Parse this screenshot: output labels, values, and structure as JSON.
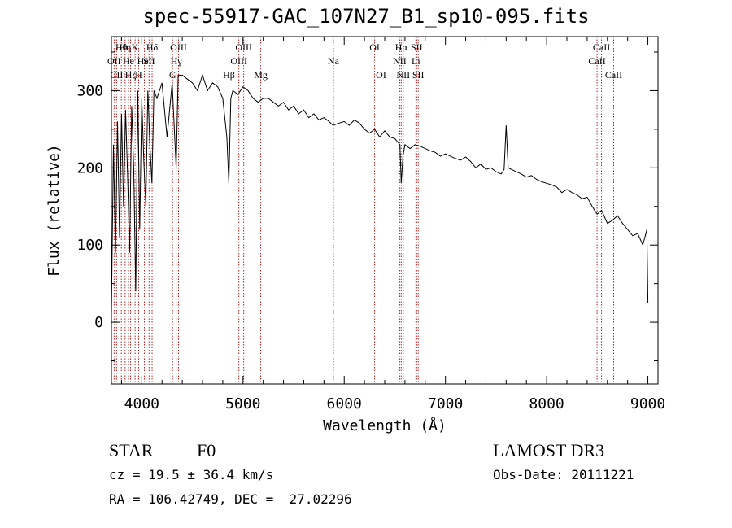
{
  "chart_data": {
    "type": "line",
    "title": "spec-55917-GAC_107N27_B1_sp10-095.fits",
    "xlabel": "Wavelength (Å)",
    "ylabel": "Flux (relative)",
    "xlim": [
      3700,
      9100
    ],
    "ylim": [
      -80,
      370
    ],
    "xticks": [
      4000,
      5000,
      6000,
      7000,
      8000,
      9000
    ],
    "yticks": [
      0,
      100,
      200,
      300
    ],
    "series": [
      {
        "name": "spectrum",
        "x": [
          3700,
          3720,
          3740,
          3760,
          3780,
          3800,
          3820,
          3840,
          3860,
          3880,
          3900,
          3920,
          3940,
          3960,
          3980,
          4000,
          4020,
          4040,
          4060,
          4080,
          4100,
          4120,
          4150,
          4200,
          4250,
          4300,
          4340,
          4360,
          4400,
          4450,
          4500,
          4550,
          4600,
          4650,
          4700,
          4750,
          4800,
          4840,
          4860,
          4880,
          4900,
          4950,
          5000,
          5050,
          5100,
          5150,
          5200,
          5250,
          5300,
          5350,
          5400,
          5450,
          5500,
          5550,
          5600,
          5650,
          5700,
          5750,
          5800,
          5850,
          5890,
          5950,
          6000,
          6050,
          6100,
          6150,
          6200,
          6250,
          6300,
          6350,
          6400,
          6450,
          6500,
          6550,
          6563,
          6580,
          6600,
          6650,
          6700,
          6750,
          6800,
          6850,
          6900,
          6950,
          7000,
          7050,
          7100,
          7150,
          7200,
          7250,
          7300,
          7350,
          7400,
          7450,
          7500,
          7550,
          7580,
          7600,
          7620,
          7650,
          7700,
          7750,
          7800,
          7850,
          7900,
          7950,
          8000,
          8050,
          8100,
          8150,
          8200,
          8250,
          8300,
          8350,
          8400,
          8450,
          8498,
          8542,
          8600,
          8650,
          8700,
          8750,
          8800,
          8850,
          8900,
          8950,
          8990,
          9000
        ],
        "y": [
          10,
          230,
          90,
          260,
          110,
          270,
          150,
          275,
          190,
          90,
          280,
          200,
          40,
          300,
          120,
          290,
          210,
          150,
          300,
          230,
          180,
          300,
          290,
          310,
          240,
          310,
          200,
          320,
          320,
          315,
          310,
          300,
          320,
          300,
          310,
          305,
          290,
          240,
          180,
          290,
          300,
          295,
          305,
          300,
          290,
          285,
          290,
          290,
          285,
          280,
          285,
          275,
          280,
          270,
          275,
          265,
          270,
          262,
          265,
          260,
          255,
          258,
          260,
          255,
          262,
          258,
          250,
          245,
          250,
          240,
          248,
          240,
          238,
          230,
          180,
          215,
          230,
          225,
          230,
          228,
          225,
          222,
          220,
          215,
          218,
          215,
          212,
          210,
          214,
          208,
          200,
          205,
          198,
          200,
          195,
          192,
          198,
          255,
          200,
          198,
          195,
          192,
          188,
          190,
          185,
          182,
          180,
          178,
          175,
          168,
          172,
          168,
          165,
          160,
          162,
          150,
          140,
          145,
          128,
          132,
          138,
          128,
          120,
          112,
          115,
          100,
          120,
          25
        ]
      }
    ],
    "lines": [
      {
        "wave": 3727,
        "label": "OII",
        "row": 1
      },
      {
        "wave": 3751,
        "label": "CII",
        "row": 2
      },
      {
        "wave": 3798,
        "label": "Hθ",
        "row": 0
      },
      {
        "wave": 3835,
        "label": "Hη",
        "row": 0
      },
      {
        "wave": 3869,
        "label": "He",
        "row": 1
      },
      {
        "wave": 3889,
        "label": "Hζ",
        "row": 2
      },
      {
        "wave": 3934,
        "label": "K",
        "row": 0
      },
      {
        "wave": 3969,
        "label": "H",
        "row": 2
      },
      {
        "wave": 4026,
        "label": "HeI",
        "row": 1
      },
      {
        "wave": 4072,
        "label": "SII",
        "row": 1
      },
      {
        "wave": 4102,
        "label": "Hδ",
        "row": 0
      },
      {
        "wave": 4304,
        "label": "G",
        "row": 2
      },
      {
        "wave": 4340,
        "label": "Hγ",
        "row": 1
      },
      {
        "wave": 4363,
        "label": "OIII",
        "row": 0
      },
      {
        "wave": 4861,
        "label": "Hβ",
        "row": 2
      },
      {
        "wave": 4959,
        "label": "OIII",
        "row": 1
      },
      {
        "wave": 5007,
        "label": "OIII",
        "row": 0
      },
      {
        "wave": 5175,
        "label": "Mg",
        "row": 2
      },
      {
        "wave": 5893,
        "label": "Na",
        "row": 1
      },
      {
        "wave": 6300,
        "label": "OI",
        "row": 0
      },
      {
        "wave": 6364,
        "label": "OI",
        "row": 2
      },
      {
        "wave": 6548,
        "label": "NII",
        "row": 1
      },
      {
        "wave": 6563,
        "label": "Hα",
        "row": 0
      },
      {
        "wave": 6583,
        "label": "NII",
        "row": 2
      },
      {
        "wave": 6708,
        "label": "Li",
        "row": 1
      },
      {
        "wave": 6716,
        "label": "SII",
        "row": 0
      },
      {
        "wave": 6731,
        "label": "SII",
        "row": 2
      },
      {
        "wave": 8498,
        "label": "CaII",
        "row": 1
      },
      {
        "wave": 8542,
        "label": "CaII",
        "row": 0
      },
      {
        "wave": 8662,
        "label": "CaII",
        "row": 2
      }
    ]
  },
  "info": {
    "class_label": "STAR",
    "subclass": "F0",
    "cz": "cz = 19.5 ± 36.4 km/s",
    "coords": "RA = 106.42749, DEC =  27.02296",
    "survey": "LAMOST DR3",
    "obs_date": "Obs-Date: 20111221"
  }
}
